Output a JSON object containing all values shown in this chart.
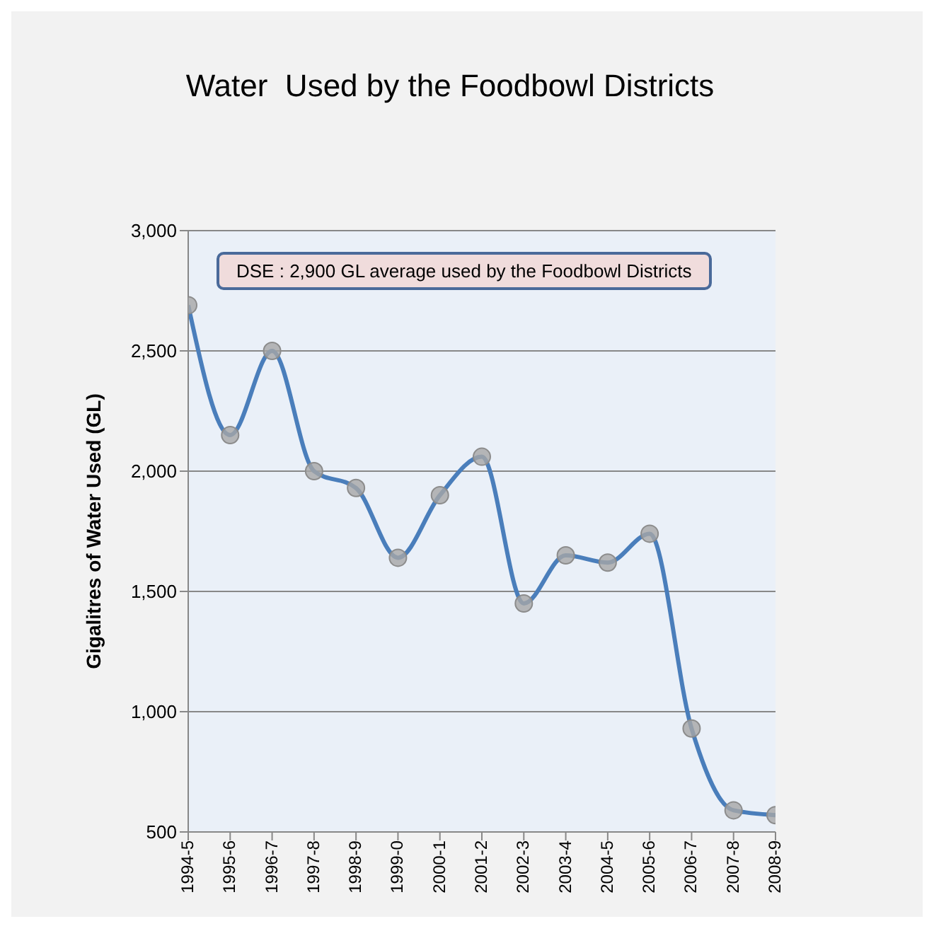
{
  "chart_data": {
    "type": "line",
    "title": "Water  Used by the Foodbowl Districts",
    "ylabel": "Gigalitres of Water Used  (GL)",
    "categories": [
      "1994-5",
      "1995-6",
      "1996-7",
      "1997-8",
      "1998-9",
      "1999-0",
      "2000-1",
      "2001-2",
      "2002-3",
      "2003-4",
      "2004-5",
      "2005-6",
      "2006-7",
      "2007-8",
      "2008-9"
    ],
    "series": [
      {
        "color": "#4a7ebb",
        "values": [
          2690,
          2150,
          2500,
          2000,
          1930,
          1640,
          1900,
          2060,
          1450,
          1650,
          1620,
          1740,
          930,
          590,
          570
        ]
      }
    ],
    "ylim": [
      500,
      3000
    ],
    "yticks": [
      500,
      {
        "value": 1000,
        "label": "1,000"
      },
      {
        "value": 1500,
        "label": "1,500"
      },
      {
        "value": 2000,
        "label": "2,000"
      },
      {
        "value": 2500,
        "label": "2,500"
      },
      {
        "value": 3000,
        "label": "3,000"
      }
    ],
    "grid": "y",
    "legend": false,
    "marker": "circle",
    "line_style": "solid",
    "annotations": [
      "DSE : 2,900  GL average used by the Foodbowl Districts"
    ]
  }
}
